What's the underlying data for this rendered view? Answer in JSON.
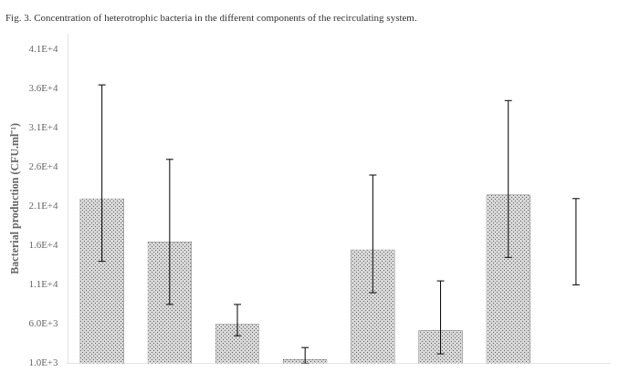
{
  "chart_data": {
    "type": "bar",
    "title": "Fig. 3. Concentration of heterotrophic bacteria in the different components of the recirculating system.",
    "ylabel": "Bacterial production (CFU.ml⁻¹)",
    "categories": [
      null,
      null,
      null,
      null,
      null,
      null,
      null,
      null
    ],
    "values": [
      22000,
      16500,
      6000,
      1500,
      15500,
      5200,
      22500,
      null
    ],
    "error_low": [
      14000,
      8500,
      4500,
      1000,
      10000,
      2200,
      14500,
      11000
    ],
    "error_high": [
      36500,
      27000,
      8500,
      3000,
      25000,
      11500,
      34500,
      22000
    ],
    "color": "#d8d8d8",
    "ylim": [
      1000,
      43000
    ],
    "yticks": [
      {
        "value": 1000,
        "label": "1.0E+3"
      },
      {
        "value": 6000,
        "label": "6.0E+3"
      },
      {
        "value": 11000,
        "label": "1.1E+4"
      },
      {
        "value": 16000,
        "label": "1.6E+4"
      },
      {
        "value": 21000,
        "label": "2.1E+4"
      },
      {
        "value": 26000,
        "label": "2.6E+4"
      },
      {
        "value": 31000,
        "label": "3.1E+4"
      },
      {
        "value": 36000,
        "label": "3.6E+4"
      },
      {
        "value": 41000,
        "label": "4.1E+4"
      }
    ],
    "grid": false,
    "tick_labels": "y"
  }
}
